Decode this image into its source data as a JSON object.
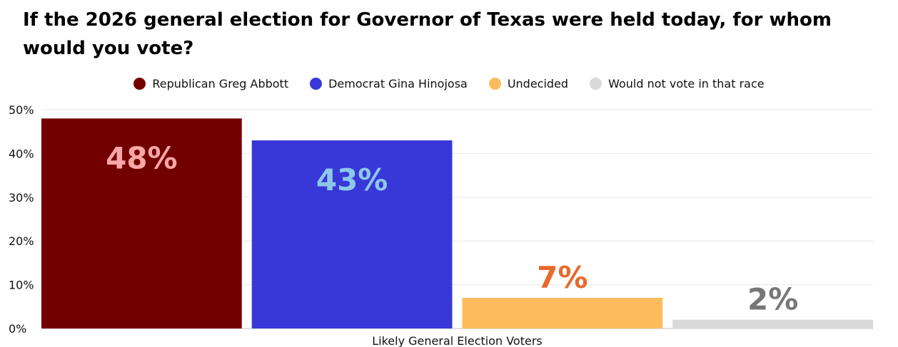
{
  "chart_data": {
    "type": "bar",
    "title": "If the 2026 general election for Governor of Texas were held today, for whom would you vote?",
    "xlabel": "Likely General Election Voters",
    "ylabel": "",
    "ylim": [
      0,
      50
    ],
    "y_ticks": [
      0,
      10,
      20,
      30,
      40,
      50
    ],
    "y_tick_labels": [
      "0%",
      "10%",
      "20%",
      "30%",
      "40%",
      "50%"
    ],
    "grid": true,
    "legend_position": "top-center",
    "categories": [
      "Likely General Election Voters"
    ],
    "series": [
      {
        "name": "Republican Greg Abbott",
        "values": [
          48
        ],
        "label": "48%",
        "color": "#720000",
        "label_color": "#f9a6a6"
      },
      {
        "name": "Democrat Gina Hinojosa",
        "values": [
          43
        ],
        "label": "43%",
        "color": "#3838d8",
        "label_color": "#8ec8e8"
      },
      {
        "name": "Undecided",
        "values": [
          7
        ],
        "label": "7%",
        "color": "#fdbc5c",
        "label_color": "#e86a2a"
      },
      {
        "name": "Would not vote in that race",
        "values": [
          2
        ],
        "label": "2%",
        "color": "#d9d9d9",
        "label_color": "#777777"
      }
    ]
  }
}
